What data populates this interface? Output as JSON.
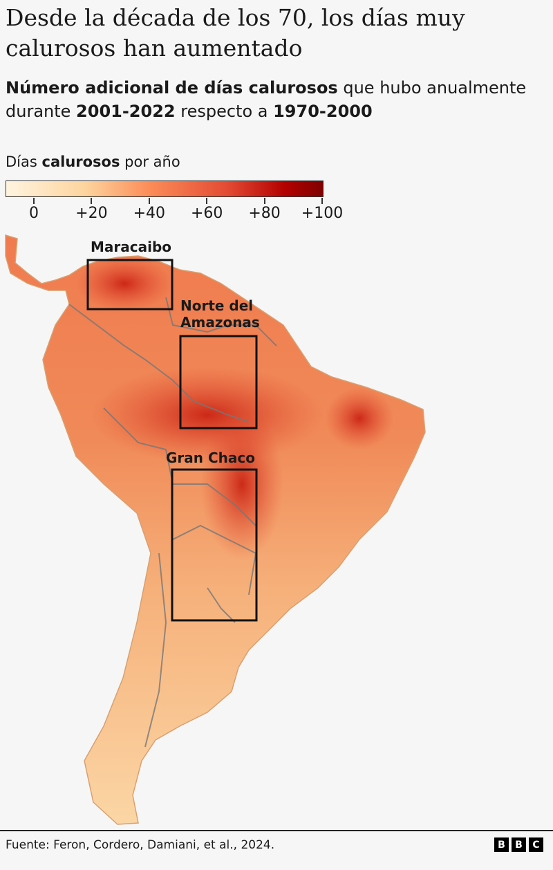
{
  "title": "Desde la década de los 70, los días muy calurosos han aumentado",
  "subtitle": {
    "part1_bold": "Número adicional de días calurosos",
    "part2": " que hubo anualmente durante ",
    "part3_bold": "2001-2022",
    "part4": " respecto a ",
    "part5_bold": "1970-2000"
  },
  "legend": {
    "title_pre": "Días ",
    "title_bold": "calurosos",
    "title_post": " por año",
    "ticks": [
      "0",
      "+20",
      "+40",
      "+60",
      "+80",
      "+100"
    ],
    "colors": [
      "#fff4e0",
      "#fdd49e",
      "#fc8d59",
      "#e34a33",
      "#b30000",
      "#7f0000"
    ]
  },
  "regions": [
    {
      "label": "Maracaibo"
    },
    {
      "label": "Norte del Amazonas"
    },
    {
      "label": "Gran Chaco"
    }
  ],
  "footer": {
    "source": "Fuente: Feron, Cordero, Damiani, et al., 2024.",
    "logo": [
      "B",
      "B",
      "C"
    ]
  }
}
